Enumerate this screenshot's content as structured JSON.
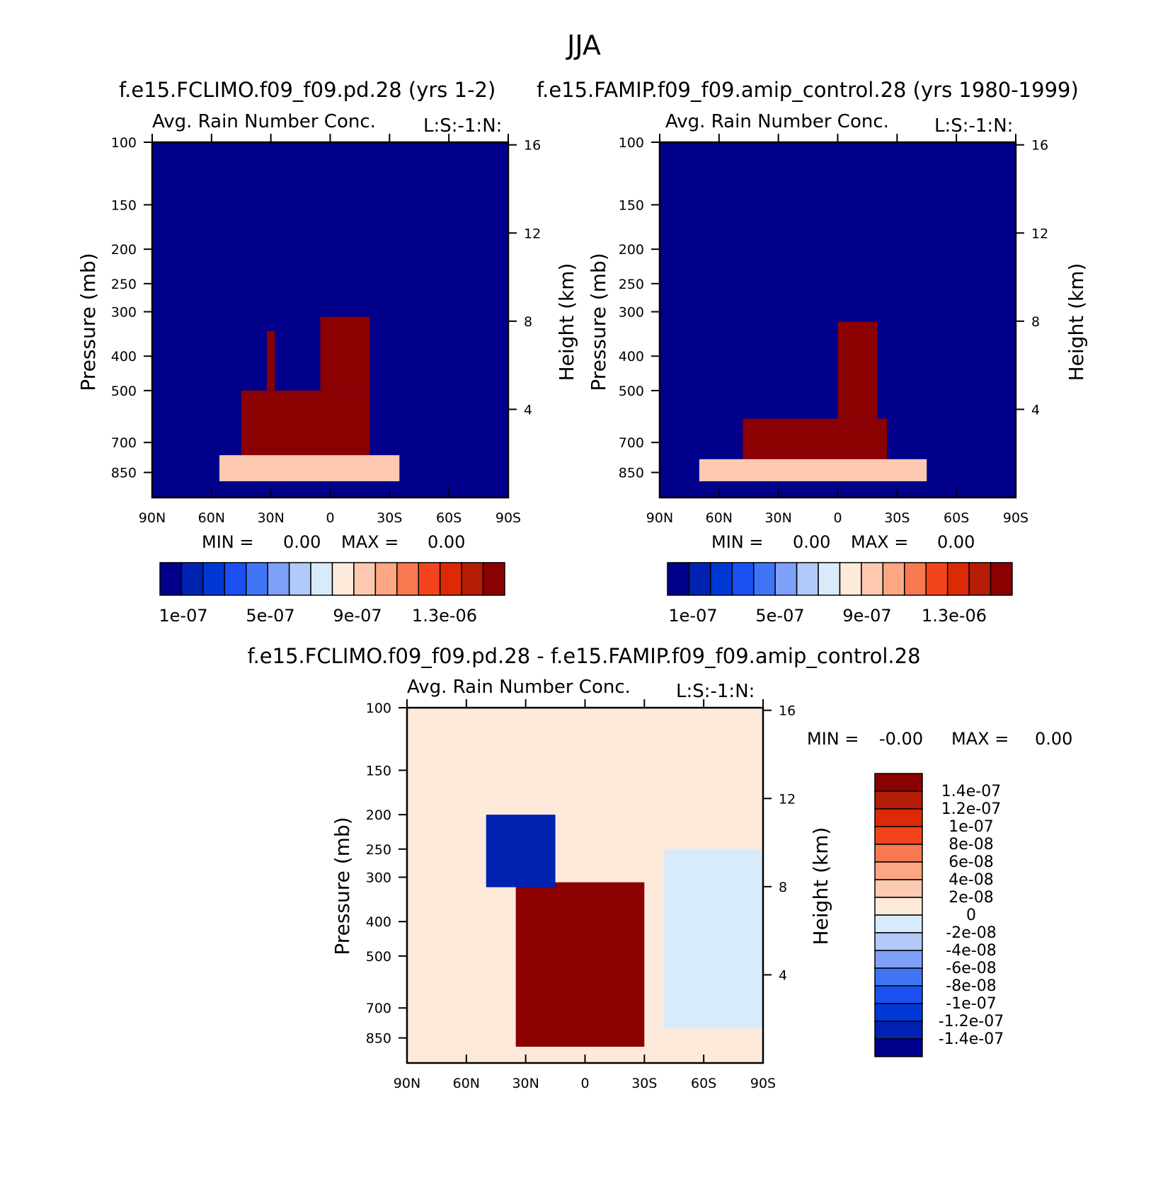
{
  "figure_title": "JJA",
  "colors": {
    "abs_palette": [
      "#00008b",
      "#0022b0",
      "#0038d6",
      "#1a4ff2",
      "#3f75f5",
      "#7fa0f8",
      "#b1c9fb",
      "#d8ebfb",
      "#fdeadb",
      "#fdc9b1",
      "#fca683",
      "#f8784f",
      "#f2431c",
      "#dc2a06",
      "#b51c05",
      "#8b0000"
    ],
    "diff_palette": [
      "#00008b",
      "#0022b0",
      "#0038d6",
      "#1a4ff2",
      "#3f75f5",
      "#7fa0f8",
      "#b1c9fb",
      "#d8ebfb",
      "#fdeadb",
      "#fdc9b1",
      "#fca683",
      "#f8784f",
      "#f2431c",
      "#dc2a06",
      "#b51c05",
      "#8b0000"
    ]
  },
  "chart_data": [
    {
      "type": "heatmap",
      "case_title": "f.e15.FCLIMO.f09_f09.pd.28 (yrs 1-2)",
      "left_string": "Avg. Rain Number Conc.",
      "right_string": "L:S:-1:N:",
      "xlabel": "",
      "ylabel": "Pressure (mb)",
      "y2label": "Height (km)",
      "xlim": [
        90,
        -90
      ],
      "x_ticks": [
        "90N",
        "60N",
        "30N",
        "0",
        "30S",
        "60S",
        "90S"
      ],
      "y_ticks": [
        "100",
        "150",
        "200",
        "250",
        "300",
        "400",
        "500",
        "700",
        "850"
      ],
      "y2_ticks": [
        "16",
        "12",
        "8",
        "4"
      ],
      "stats": {
        "min_label": "MIN =",
        "min_value": "0.00",
        "max_label": "MAX =",
        "max_value": "0.00"
      },
      "colorbar_labels": [
        "1e-07",
        "5e-07",
        "9e-07",
        "1.3e-06"
      ],
      "regions": [
        {
          "lat": [
            45,
            -20
          ],
          "p": [
            500,
            900
          ],
          "level": 15
        },
        {
          "lat": [
            5,
            -20
          ],
          "p": [
            310,
            500
          ],
          "level": 15
        },
        {
          "lat": [
            32,
            28
          ],
          "p": [
            340,
            500
          ],
          "level": 15
        },
        {
          "lat": [
            56,
            -35
          ],
          "p": [
            760,
            900
          ],
          "level": 9
        }
      ]
    },
    {
      "type": "heatmap",
      "case_title": "f.e15.FAMIP.f09_f09.amip_control.28 (yrs 1980-1999)",
      "left_string": "Avg. Rain Number Conc.",
      "right_string": "L:S:-1:N:",
      "xlabel": "",
      "ylabel": "Pressure (mb)",
      "y2label": "Height (km)",
      "xlim": [
        90,
        -90
      ],
      "x_ticks": [
        "90N",
        "60N",
        "30N",
        "0",
        "30S",
        "60S",
        "90S"
      ],
      "y_ticks": [
        "100",
        "150",
        "200",
        "250",
        "300",
        "400",
        "500",
        "700",
        "850"
      ],
      "y2_ticks": [
        "16",
        "12",
        "8",
        "4"
      ],
      "stats": {
        "min_label": "MIN =",
        "min_value": "0.00",
        "max_label": "MAX =",
        "max_value": "0.00"
      },
      "colorbar_labels": [
        "1e-07",
        "5e-07",
        "9e-07",
        "1.3e-06"
      ],
      "regions": [
        {
          "lat": [
            48,
            -25
          ],
          "p": [
            600,
            900
          ],
          "level": 15
        },
        {
          "lat": [
            0,
            -20
          ],
          "p": [
            320,
            600
          ],
          "level": 15
        },
        {
          "lat": [
            70,
            -45
          ],
          "p": [
            780,
            900
          ],
          "level": 9
        }
      ]
    },
    {
      "type": "heatmap",
      "case_title": "f.e15.FCLIMO.f09_f09.pd.28 - f.e15.FAMIP.f09_f09.amip_control.28",
      "left_string": "Avg. Rain Number Conc.",
      "right_string": "L:S:-1:N:",
      "xlabel": "",
      "ylabel": "Pressure (mb)",
      "y2label": "Height (km)",
      "xlim": [
        90,
        -90
      ],
      "x_ticks": [
        "90N",
        "60N",
        "30N",
        "0",
        "30S",
        "60S",
        "90S"
      ],
      "y_ticks": [
        "100",
        "150",
        "200",
        "250",
        "300",
        "400",
        "500",
        "700",
        "850"
      ],
      "y2_ticks": [
        "16",
        "12",
        "8",
        "4"
      ],
      "stats": {
        "min_label": "MIN =",
        "min_value": "-0.00",
        "max_label": "MAX =",
        "max_value": "0.00"
      },
      "colorbar_labels": [
        "1.4e-07",
        "1.2e-07",
        "1e-07",
        "8e-08",
        "6e-08",
        "4e-08",
        "2e-08",
        "0",
        "-2e-08",
        "-4e-08",
        "-6e-08",
        "-8e-08",
        "-1e-07",
        "-1.2e-07",
        "-1.4e-07"
      ],
      "regions": [
        {
          "lat": [
            35,
            -30
          ],
          "p": [
            310,
            900
          ],
          "level": 15
        },
        {
          "lat": [
            -40,
            -90
          ],
          "p": [
            250,
            800
          ],
          "level": 7
        },
        {
          "lat": [
            50,
            15
          ],
          "p": [
            200,
            320
          ],
          "level": 1
        }
      ]
    }
  ]
}
